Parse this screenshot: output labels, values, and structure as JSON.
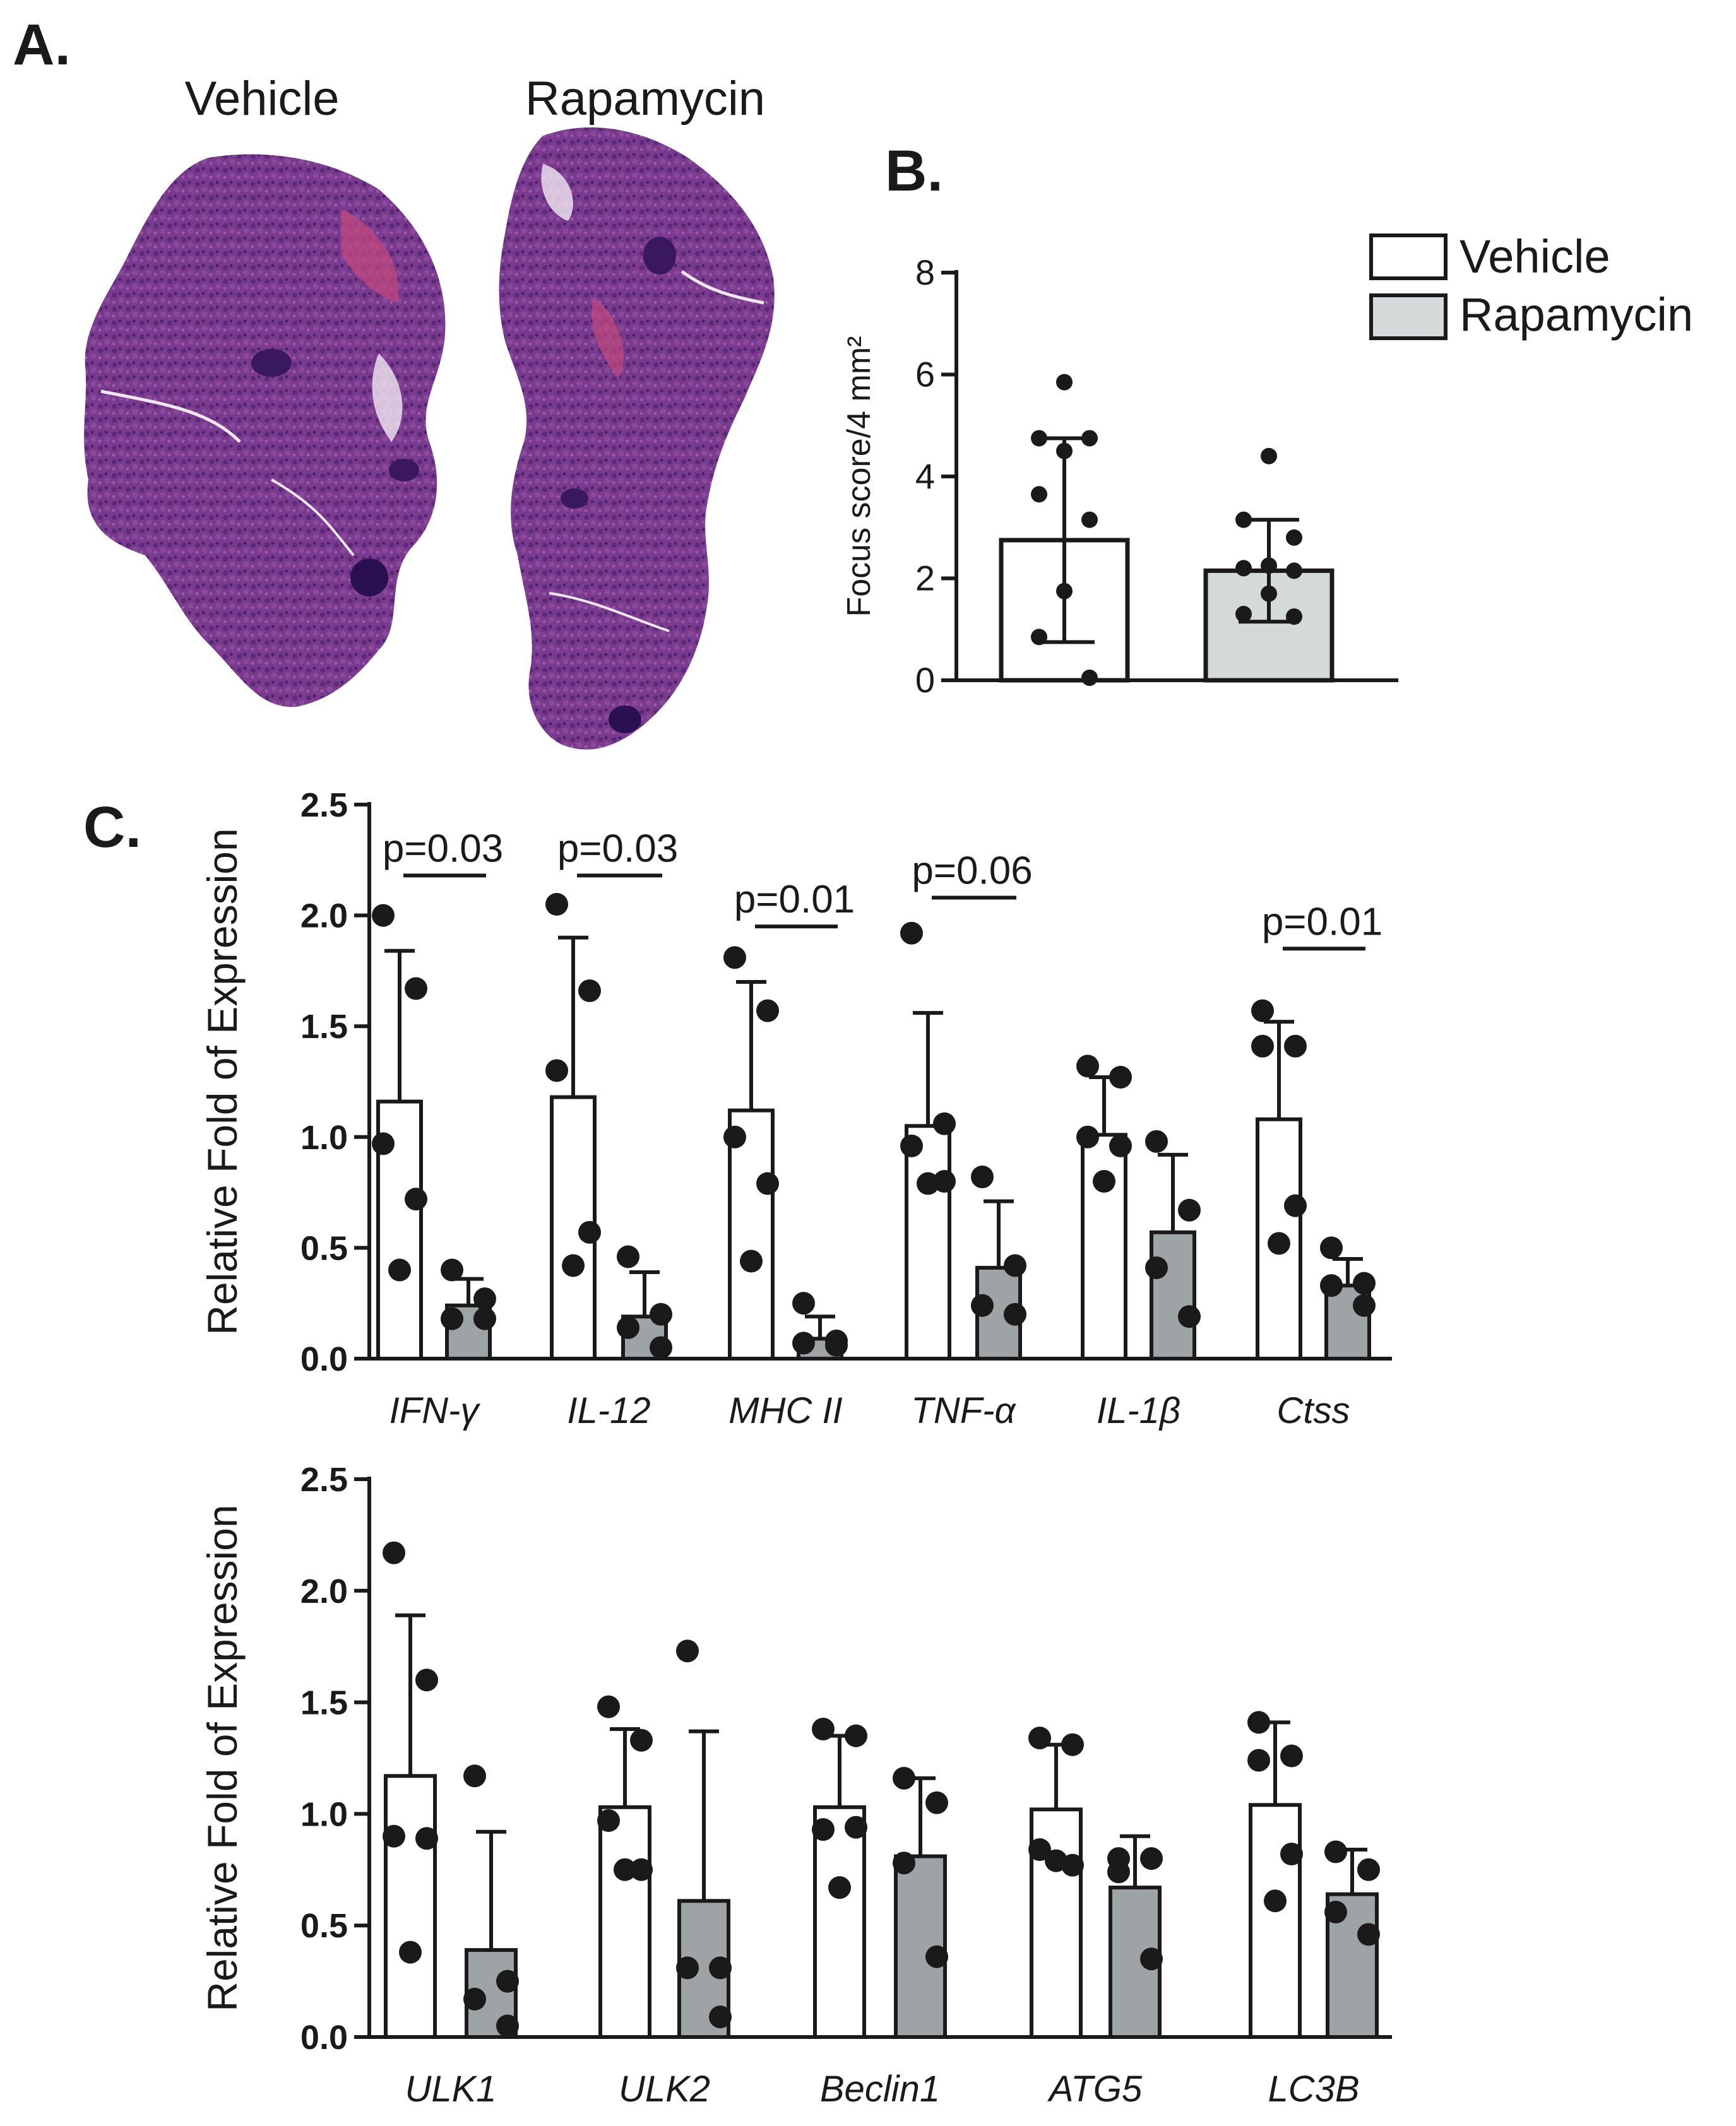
{
  "panels": {
    "a": {
      "letter": "A.",
      "image_labels": [
        "Vehicle",
        "Rapamycin"
      ],
      "colors": {
        "tissue": "#7a3a8e",
        "tissue_dark": "#4a2070",
        "tissue_pink": "#c2487e",
        "duct": "#f3e8f2"
      }
    },
    "b": {
      "letter": "B."
    },
    "c": {
      "letter": "C."
    }
  },
  "legend": {
    "items": [
      {
        "label": "Vehicle",
        "color": "#ffffff"
      },
      {
        "label": "Rapamycin",
        "color": "#d4d9da"
      }
    ]
  },
  "colors": {
    "vehicle_fill": "#ffffff",
    "rapamycin_fill_b": "#d4d9da",
    "rapamycin_fill_c": "#9ea3a6",
    "ink": "#1a1a1a"
  },
  "chart_data": [
    {
      "id": "focus",
      "type": "bar",
      "ylabel": "Focus score/4 mm²",
      "ylim": [
        0,
        8
      ],
      "yticks": [
        "0",
        "2",
        "4",
        "6",
        "8"
      ],
      "categories": [
        "Vehicle",
        "Rapamycin"
      ],
      "series": [
        {
          "values": [
            2.75,
            2.15
          ],
          "errors": [
            2.0,
            1.0
          ]
        }
      ],
      "points": [
        [
          5.85,
          4.75,
          4.75,
          4.5,
          3.65,
          3.15,
          1.75,
          0.85,
          0.05
        ],
        [
          4.4,
          3.15,
          2.8,
          2.25,
          2.2,
          2.15,
          1.7,
          1.3,
          1.25
        ]
      ]
    },
    {
      "id": "inflammation",
      "type": "bar",
      "ylabel": "Relative Fold of Expression",
      "ylim": [
        0,
        2.5
      ],
      "yticks": [
        "0.0",
        "0.5",
        "1.0",
        "1.5",
        "2.0",
        "2.5"
      ],
      "categories": [
        "IFN-γ",
        "IL-12",
        "MHC II",
        "TNF-α",
        "IL-1β",
        "Ctss"
      ],
      "series": [
        {
          "name": "Vehicle",
          "values": [
            1.16,
            1.18,
            1.12,
            1.05,
            1.01,
            1.08
          ],
          "errors": [
            0.68,
            0.72,
            0.58,
            0.51,
            0.26,
            0.44
          ]
        },
        {
          "name": "Rapamycin",
          "values": [
            0.24,
            0.19,
            0.09,
            0.41,
            0.57,
            0.33
          ],
          "errors": [
            0.12,
            0.2,
            0.1,
            0.3,
            0.35,
            0.12
          ]
        }
      ],
      "points": [
        [
          [
            2.0,
            1.67,
            0.97,
            0.72,
            0.4
          ],
          [
            2.05,
            1.66,
            1.3,
            0.57,
            0.42
          ],
          [
            1.81,
            1.57,
            1.0,
            0.79,
            0.44
          ],
          [
            1.92,
            1.06,
            0.96,
            0.8,
            0.79
          ],
          [
            1.32,
            1.27,
            1.0,
            0.96,
            0.8
          ],
          [
            1.57,
            1.41,
            1.41,
            0.69,
            0.52
          ]
        ],
        [
          [
            0.4,
            0.27,
            0.18,
            0.18
          ],
          [
            0.46,
            0.2,
            0.14,
            0.05
          ],
          [
            0.25,
            0.08,
            0.07,
            0.06
          ],
          [
            0.82,
            0.42,
            0.24,
            0.2
          ],
          [
            0.98,
            0.67,
            0.41,
            0.19
          ],
          [
            0.5,
            0.34,
            0.33,
            0.24
          ]
        ]
      ],
      "pvalues": [
        {
          "label": "p=0.03",
          "category": 0,
          "y": 2.18
        },
        {
          "label": "p=0.03",
          "category": 1,
          "y": 2.18
        },
        {
          "label": "p=0.01",
          "category": 2,
          "y": 1.95
        },
        {
          "label": "p=0.06",
          "category": 3,
          "y": 2.08
        },
        {
          "label": "p=0.01",
          "category": 5,
          "y": 1.85
        }
      ]
    },
    {
      "id": "autophagy",
      "type": "bar",
      "ylabel": "Relative Fold of Expression",
      "ylim": [
        0,
        2.5
      ],
      "yticks": [
        "0.0",
        "0.5",
        "1.0",
        "1.5",
        "2.0",
        "2.5"
      ],
      "categories": [
        "ULK1",
        "ULK2",
        "Beclin1",
        "ATG5",
        "LC3B"
      ],
      "series": [
        {
          "name": "Vehicle",
          "values": [
            1.17,
            1.03,
            1.03,
            1.02,
            1.04
          ],
          "errors": [
            0.72,
            0.35,
            0.32,
            0.29,
            0.37
          ]
        },
        {
          "name": "Rapamycin",
          "values": [
            0.39,
            0.61,
            0.81,
            0.67,
            0.64
          ],
          "errors": [
            0.53,
            0.76,
            0.35,
            0.23,
            0.2
          ]
        }
      ],
      "points": [
        [
          [
            2.17,
            1.6,
            0.9,
            0.89,
            0.38
          ],
          [
            1.48,
            1.33,
            0.97,
            0.75,
            0.75
          ],
          [
            1.38,
            1.35,
            0.93,
            0.94,
            0.67
          ],
          [
            1.34,
            1.31,
            0.84,
            0.77,
            0.79
          ],
          [
            1.41,
            1.26,
            1.24,
            0.82,
            0.61
          ]
        ],
        [
          [
            1.17,
            0.25,
            0.17,
            0.05
          ],
          [
            1.73,
            0.31,
            0.31,
            0.09
          ],
          [
            1.16,
            1.05,
            0.78,
            0.36
          ],
          [
            0.8,
            0.8,
            0.74,
            0.35
          ],
          [
            0.83,
            0.75,
            0.56,
            0.46
          ]
        ]
      ]
    }
  ]
}
